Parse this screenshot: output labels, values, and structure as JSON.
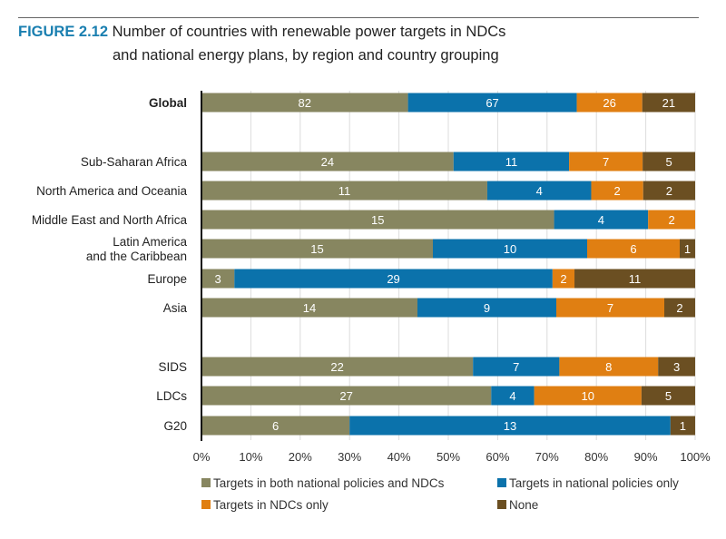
{
  "figure_label": "FIGURE 2.12",
  "chart_data": {
    "type": "bar",
    "orientation": "horizontal",
    "stacked": "100%",
    "title": "Number of countries with renewable power targets in NDCs and national energy plans, by region and country grouping",
    "title_lines": [
      "Number of countries with renewable power targets in NDCs",
      "and national energy plans, by region and country grouping"
    ],
    "categories": [
      "Global",
      "Sub-Saharan Africa",
      "North America and Oceania",
      "Middle East and North Africa",
      "Latin America and the Caribbean",
      "Europe",
      "Asia",
      "SIDS",
      "LDCs",
      "G20"
    ],
    "category_lines": [
      [
        "Global"
      ],
      [
        "Sub-Saharan Africa"
      ],
      [
        "North America and Oceania"
      ],
      [
        "Middle East and North Africa"
      ],
      [
        "Latin America",
        "and the Caribbean"
      ],
      [
        "Europe"
      ],
      [
        "Asia"
      ],
      [
        "SIDS"
      ],
      [
        "LDCs"
      ],
      [
        "G20"
      ]
    ],
    "series": [
      {
        "name": "Targets in both national policies and NDCs",
        "color": "#878660",
        "values": [
          82,
          24,
          11,
          15,
          15,
          3,
          14,
          22,
          27,
          6
        ]
      },
      {
        "name": "Targets in national policies only",
        "color": "#0b72ab",
        "values": [
          67,
          11,
          4,
          4,
          10,
          29,
          9,
          7,
          4,
          13
        ]
      },
      {
        "name": "Targets in NDCs only",
        "color": "#e07f12",
        "values": [
          26,
          7,
          2,
          2,
          6,
          2,
          7,
          8,
          10,
          0
        ]
      },
      {
        "name": "None",
        "color": "#6b4f22",
        "values": [
          21,
          5,
          2,
          0,
          1,
          11,
          2,
          3,
          5,
          1
        ]
      }
    ],
    "xticks": [
      "0%",
      "10%",
      "20%",
      "30%",
      "40%",
      "50%",
      "60%",
      "70%",
      "80%",
      "90%",
      "100%"
    ],
    "xlim": [
      0,
      100
    ],
    "grid": true,
    "legend_position": "bottom"
  }
}
